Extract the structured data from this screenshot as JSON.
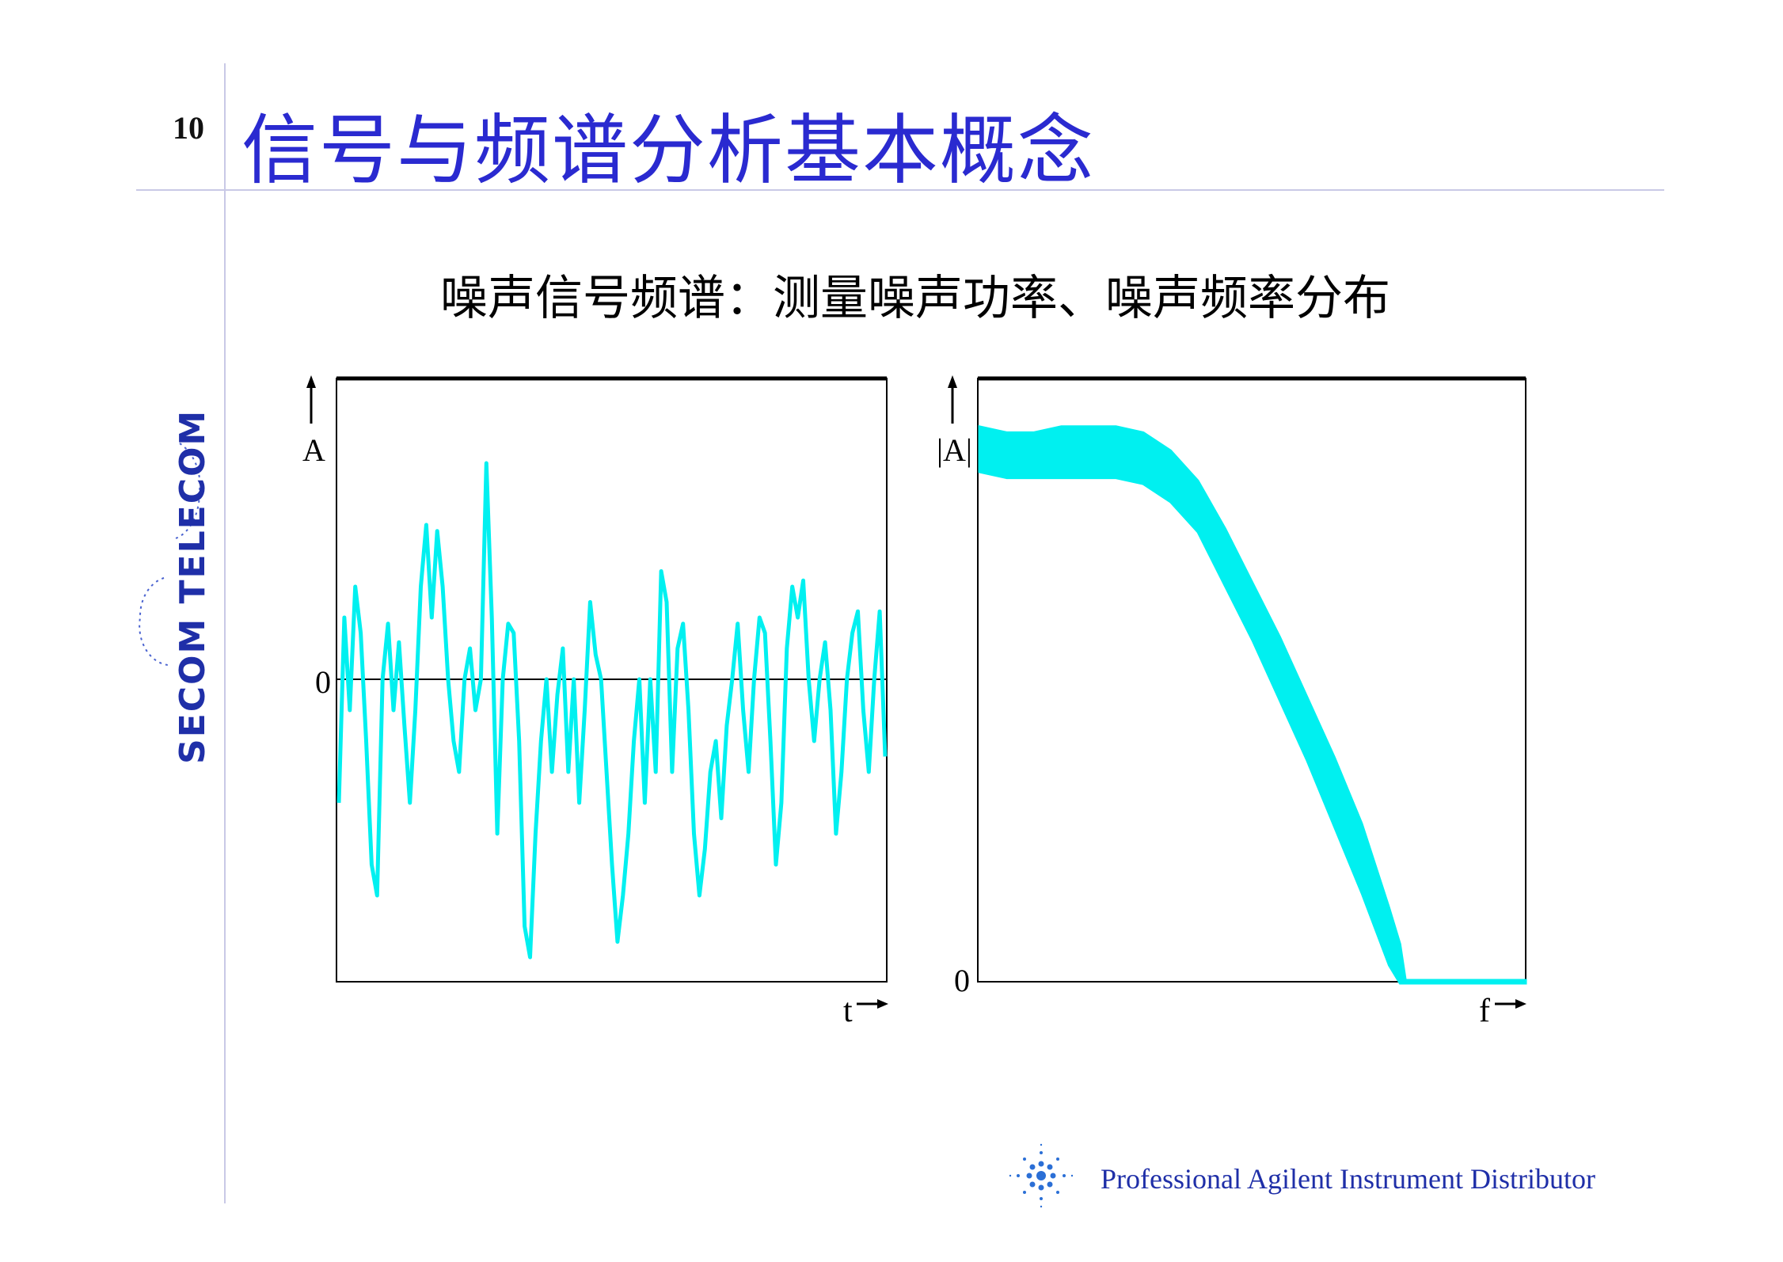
{
  "slide": {
    "page_number": "10",
    "title": "信号与频谱分析基本概念",
    "subtitle": "噪声信号频谱：测量噪声功率、噪声频率分布"
  },
  "logo": {
    "text": "SECOM TELECOM",
    "icon": "secom-telecom-logo-icon"
  },
  "footer": {
    "text": "Professional Agilent Instrument Distributor",
    "icon": "agilent-spark-icon"
  },
  "colors": {
    "title": "#2a2ad0",
    "trace": "#00f0f0",
    "axis": "#000000",
    "rule": "#c9c9e6",
    "logo": "#1f2fa8"
  },
  "chart_data": [
    {
      "type": "line",
      "ylabel": "A",
      "xlabel": "t",
      "y_tick_labels": [
        "0"
      ],
      "zero_line": true,
      "grid": false,
      "x": [
        0,
        1,
        2,
        3,
        4,
        5,
        6,
        7,
        8,
        9,
        10,
        11,
        12,
        13,
        14,
        15,
        16,
        17,
        18,
        19,
        20,
        21,
        22,
        23,
        24,
        25,
        26,
        27,
        28,
        29,
        30,
        31,
        32,
        33,
        34,
        35,
        36,
        37,
        38,
        39,
        40,
        41,
        42,
        43,
        44,
        45,
        46,
        47,
        48,
        49,
        50,
        51,
        52,
        53,
        54,
        55,
        56,
        57,
        58,
        59,
        60,
        61,
        62,
        63,
        64,
        65,
        66,
        67,
        68,
        69,
        70,
        71,
        72,
        73,
        74,
        75,
        76,
        77,
        78,
        79,
        80,
        81,
        82,
        83,
        84,
        85,
        86,
        87,
        88,
        89,
        90,
        91,
        92,
        93,
        94,
        95,
        96,
        97,
        98,
        99,
        100
      ],
      "values": [
        -0.4,
        0.2,
        -0.1,
        0.3,
        0.15,
        -0.2,
        -0.6,
        -0.7,
        0.0,
        0.18,
        -0.1,
        0.12,
        -0.15,
        -0.4,
        -0.1,
        0.3,
        0.5,
        0.2,
        0.48,
        0.3,
        0.0,
        -0.2,
        -0.3,
        0.0,
        0.1,
        -0.1,
        0.0,
        0.7,
        0.2,
        -0.5,
        0.0,
        0.18,
        0.15,
        -0.2,
        -0.8,
        -0.9,
        -0.5,
        -0.2,
        0.0,
        -0.3,
        -0.05,
        0.1,
        -0.3,
        0.0,
        -0.4,
        -0.1,
        0.25,
        0.08,
        0.0,
        -0.3,
        -0.6,
        -0.85,
        -0.7,
        -0.5,
        -0.2,
        0.0,
        -0.4,
        0.0,
        -0.3,
        0.35,
        0.25,
        -0.3,
        0.1,
        0.18,
        -0.1,
        -0.5,
        -0.7,
        -0.55,
        -0.3,
        -0.2,
        -0.45,
        -0.15,
        0.0,
        0.18,
        -0.1,
        -0.3,
        0.0,
        0.2,
        0.15,
        -0.2,
        -0.6,
        -0.4,
        0.1,
        0.3,
        0.2,
        0.32,
        0.0,
        -0.2,
        0.0,
        0.12,
        -0.1,
        -0.5,
        -0.3,
        0.0,
        0.15,
        0.22,
        -0.1,
        -0.3,
        0.0,
        0.22,
        -0.25
      ]
    },
    {
      "type": "area",
      "ylabel": "|A|",
      "xlabel": "f",
      "y_tick_labels": [
        "0"
      ],
      "grid": false,
      "x": [
        0,
        5,
        10,
        15,
        20,
        25,
        30,
        35,
        40,
        45,
        50,
        55,
        60,
        65,
        70,
        75,
        77,
        78,
        80,
        85,
        90,
        95,
        100
      ],
      "upper": [
        0.92,
        0.91,
        0.91,
        0.92,
        0.92,
        0.92,
        0.91,
        0.88,
        0.83,
        0.75,
        0.66,
        0.57,
        0.47,
        0.37,
        0.26,
        0.12,
        0.06,
        0.0,
        0.0,
        0.0,
        0.0,
        0.0,
        0.0
      ],
      "lower": [
        0.85,
        0.84,
        0.84,
        0.84,
        0.84,
        0.84,
        0.83,
        0.8,
        0.75,
        0.66,
        0.57,
        0.47,
        0.37,
        0.26,
        0.15,
        0.03,
        0.0,
        0.0,
        0.0,
        0.0,
        0.0,
        0.0,
        0.0
      ]
    }
  ]
}
